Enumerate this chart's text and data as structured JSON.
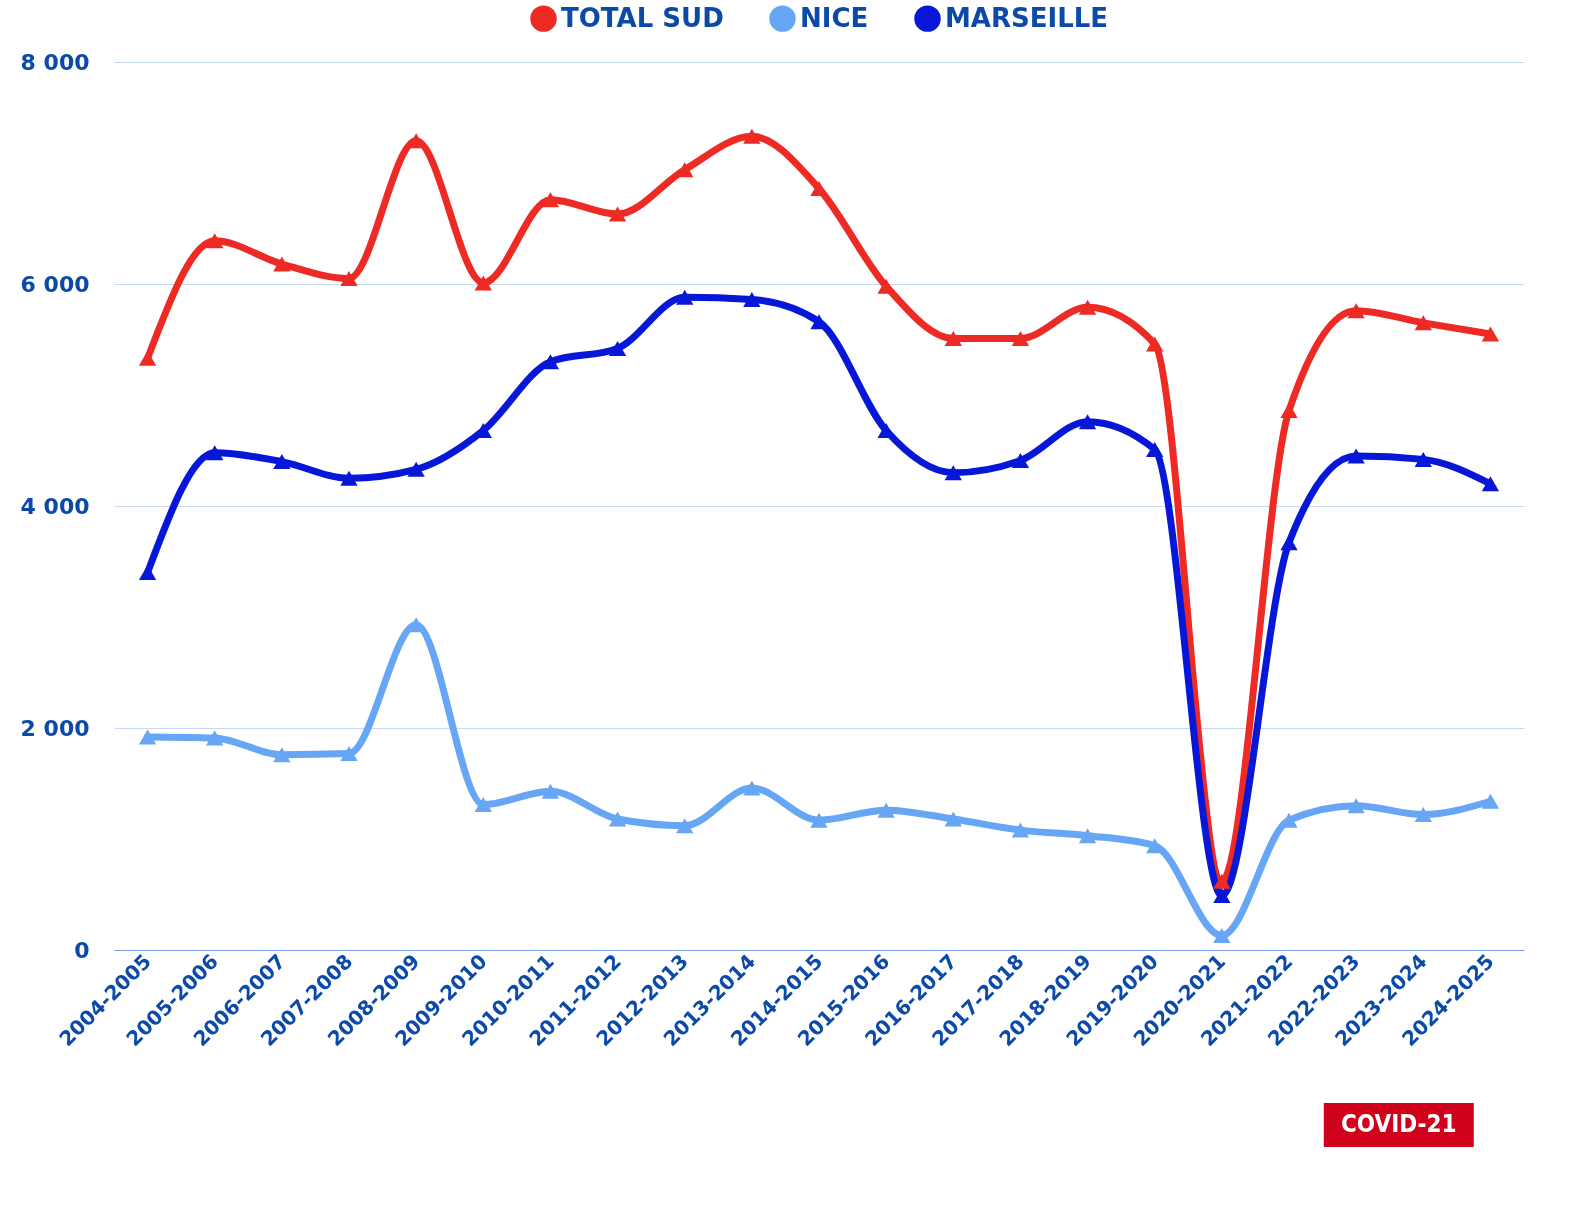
{
  "chart_data": {
    "type": "line",
    "categories": [
      "2004-2005",
      "2005-2006",
      "2006-2007",
      "2007-2008",
      "2008-2009",
      "2009-2010",
      "2010-2011",
      "2011-2012",
      "2012-2013",
      "2013-2014",
      "2014-2015",
      "2015-2016",
      "2016-2017",
      "2017-2018",
      "2018-2019",
      "2019-2020",
      "2020-2021",
      "2021-2022",
      "2022-2023",
      "2023-2024",
      "2024-2025"
    ],
    "series": [
      {
        "name": "TOTAL SUD",
        "color": "#ee2a24",
        "values": [
          5330,
          6390,
          6180,
          6050,
          7290,
          6010,
          6760,
          6630,
          7030,
          7330,
          6860,
          5980,
          5510,
          5510,
          5790,
          5460,
          620,
          4860,
          5760,
          5650,
          5550
        ]
      },
      {
        "name": "NICE",
        "color": "#66a6f5",
        "values": [
          1920,
          1910,
          1760,
          1770,
          2930,
          1310,
          1430,
          1180,
          1120,
          1460,
          1170,
          1260,
          1180,
          1080,
          1030,
          940,
          130,
          1170,
          1300,
          1220,
          1340
        ]
      },
      {
        "name": "MARSEILLE",
        "color": "#0717d8",
        "values": [
          3400,
          4480,
          4400,
          4250,
          4330,
          4680,
          5300,
          5420,
          5880,
          5860,
          5660,
          4680,
          4300,
          4410,
          4760,
          4510,
          490,
          3670,
          4450,
          4420,
          4200
        ]
      }
    ],
    "ylim": [
      0,
      8000
    ],
    "yticks": [
      {
        "value": 0,
        "label": "0"
      },
      {
        "value": 2000,
        "label": "2 000"
      },
      {
        "value": 4000,
        "label": "4 000"
      },
      {
        "value": 6000,
        "label": "6 000"
      },
      {
        "value": 8000,
        "label": "8 000"
      }
    ],
    "grid": "y",
    "legend": "top",
    "marker": "triangle",
    "line_style": "solid",
    "annotations": [
      "COVID-21"
    ]
  }
}
